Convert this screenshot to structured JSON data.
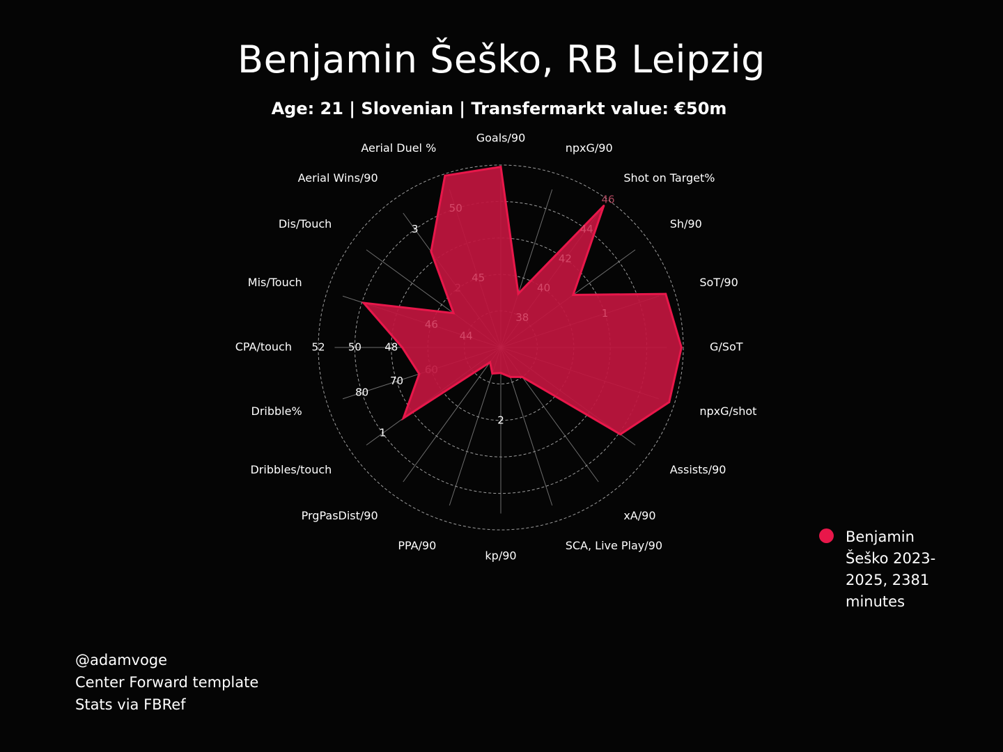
{
  "header": {
    "title": "Benjamin Šeško, RB Leipzig",
    "subtitle": "Age: 21 | Slovenian | Transfermarkt value: €50m"
  },
  "legend": {
    "label": "Benjamin Šeško 2023-2025, 2381 minutes",
    "color": "#e8174a"
  },
  "footer": {
    "line1": "@adamvoge",
    "line2": "Center Forward template",
    "line3": "Stats via FBRef"
  },
  "colors": {
    "background": "#050505",
    "fill": "#c0163e",
    "stroke": "#e8174a",
    "grid": "#bbbbbb",
    "text": "#ffffff"
  },
  "chart_data": {
    "type": "radar",
    "title": "Benjamin Šeško, RB Leipzig",
    "subtitle": "Age: 21 | Slovenian | Transfermarkt value: €50m",
    "grid": "dashed concentric circles",
    "legend_position": "bottom-right",
    "rings": 5,
    "categories": [
      "Goals/90",
      "npxG/90",
      "Shot on Target%",
      "Sh/90",
      "SoT/90",
      "G/SoT",
      "npxG/shot",
      "Assists/90",
      "xA/90",
      "SCA, Live Play/90",
      "kp/90",
      "PPA/90",
      "PrgPasDist/90",
      "Dribbles/touch",
      "Dribble%",
      "CPA/touch",
      "Mis/Touch",
      "Dis/Touch",
      "Aerial Wins/90",
      "Aerial Duel %"
    ],
    "series": [
      {
        "name": "Benjamin Šeško 2023-2025, 2381 minutes",
        "values_normalized": [
          0.99,
          0.31,
          0.96,
          0.49,
          0.95,
          0.99,
          0.97,
          0.81,
          0.2,
          0.17,
          0.14,
          0.15,
          0.1,
          0.66,
          0.47,
          0.54,
          0.79,
          0.32,
          0.65,
          0.99
        ]
      }
    ],
    "tick_labels": [
      {
        "axis": 2,
        "values": [
          "38",
          "40",
          "42",
          "44",
          "46"
        ],
        "rings": [
          1,
          2,
          3,
          4,
          5
        ],
        "muted": true
      },
      {
        "axis": 4,
        "values": [
          "1"
        ],
        "rings": [
          3
        ],
        "muted": true
      },
      {
        "axis": 10,
        "values": [
          "2"
        ],
        "rings": [
          2
        ],
        "muted": false
      },
      {
        "axis": 13,
        "values": [
          "1"
        ],
        "rings": [
          4
        ],
        "muted": false
      },
      {
        "axis": 14,
        "values": [
          "60",
          "70",
          "80"
        ],
        "rings": [
          2,
          3,
          4
        ],
        "muted": false
      },
      {
        "axis": 15,
        "values": [
          "48",
          "50",
          "52"
        ],
        "rings": [
          3,
          4,
          5
        ],
        "muted": false
      },
      {
        "axis": 16,
        "values": [
          "44",
          "46"
        ],
        "rings": [
          1,
          2
        ],
        "muted": true
      },
      {
        "axis": 18,
        "values": [
          "2",
          "3"
        ],
        "rings": [
          2,
          4
        ],
        "muted": false
      },
      {
        "axis": 19,
        "values": [
          "45",
          "50"
        ],
        "rings": [
          2,
          4
        ],
        "muted": true
      }
    ]
  }
}
